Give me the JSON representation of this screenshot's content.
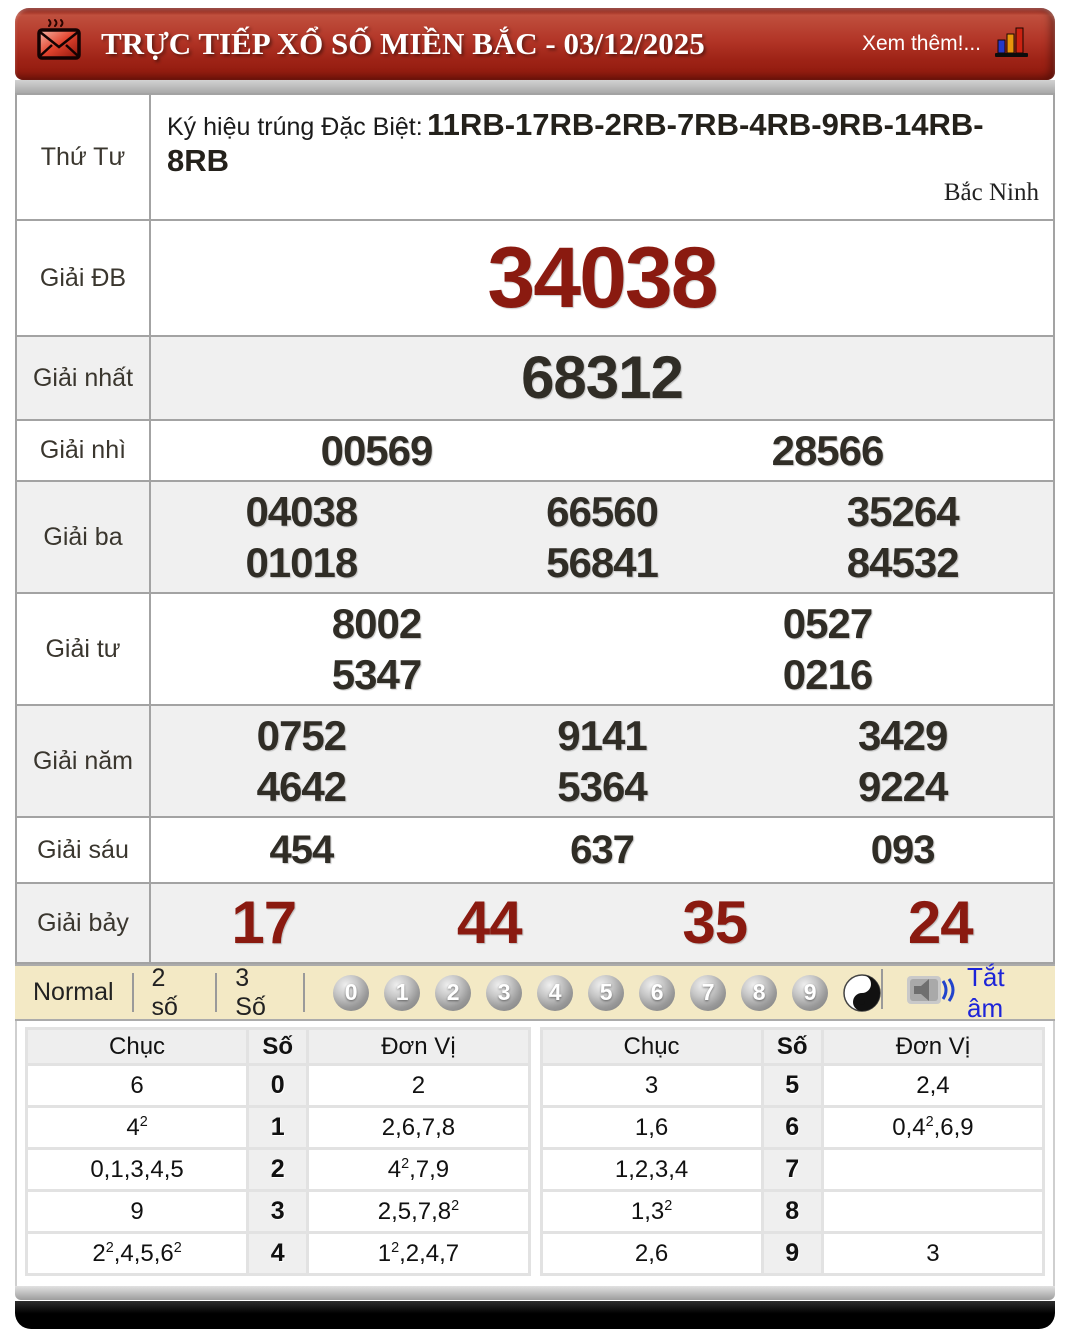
{
  "header": {
    "title": "TRỰC TIẾP XỔ SỐ MIỀN BẮC - 03/12/2025",
    "more_label": "Xem thêm!..."
  },
  "results": {
    "day_label": "Thứ Tư",
    "special_sign_label": "Ký hiệu trúng Đặc Biệt:",
    "special_sign_value": "11RB-17RB-2RB-7RB-4RB-9RB-14RB-8RB",
    "province": "Bắc Ninh",
    "prizes": [
      {
        "label": "Giải ĐB",
        "style": "db",
        "rows": [
          [
            "34038"
          ]
        ]
      },
      {
        "label": "Giải nhất",
        "style": "first",
        "rows": [
          [
            "68312"
          ]
        ]
      },
      {
        "label": "Giải nhì",
        "style": "mid",
        "rows": [
          [
            "00569",
            "28566"
          ]
        ]
      },
      {
        "label": "Giải ba",
        "style": "mid",
        "rows": [
          [
            "04038",
            "66560",
            "35264"
          ],
          [
            "01018",
            "56841",
            "84532"
          ]
        ]
      },
      {
        "label": "Giải tư",
        "style": "mid",
        "rows": [
          [
            "8002",
            "0527"
          ],
          [
            "5347",
            "0216"
          ]
        ]
      },
      {
        "label": "Giải năm",
        "style": "mid",
        "rows": [
          [
            "0752",
            "9141",
            "3429"
          ],
          [
            "4642",
            "5364",
            "9224"
          ]
        ]
      },
      {
        "label": "Giải sáu",
        "style": "six",
        "rows": [
          [
            "454",
            "637",
            "093"
          ]
        ]
      },
      {
        "label": "Giải bảy",
        "style": "seven",
        "rows": [
          [
            "17",
            "44",
            "35",
            "24"
          ]
        ]
      }
    ]
  },
  "toolbar": {
    "modes": [
      "Normal",
      "2 số",
      "3 Số"
    ],
    "balls": [
      "0",
      "1",
      "2",
      "3",
      "4",
      "5",
      "6",
      "7",
      "8",
      "9"
    ],
    "mute_label": "Tắt âm"
  },
  "digit_tables": [
    {
      "headers": [
        "Chục",
        "Số",
        "Đơn Vị"
      ],
      "rows": [
        [
          "6",
          "0",
          "2"
        ],
        [
          "4²",
          "1",
          "2,6,7,8"
        ],
        [
          "0,1,3,4,5",
          "2",
          "4²,7,9"
        ],
        [
          "9",
          "3",
          "2,5,7,8²"
        ],
        [
          "2²,4,5,6²",
          "4",
          "1²,2,4,7"
        ]
      ]
    },
    {
      "headers": [
        "Chục",
        "Số",
        "Đơn Vị"
      ],
      "rows": [
        [
          "3",
          "5",
          "2,4"
        ],
        [
          "1,6",
          "6",
          "0,4²,6,9"
        ],
        [
          "1,2,3,4",
          "7",
          ""
        ],
        [
          "1,3²",
          "8",
          ""
        ],
        [
          "2,6",
          "9",
          "3"
        ]
      ]
    }
  ],
  "colors": {
    "header_red": "#a5281b",
    "number_red": "#8a1a10",
    "number_dark": "#302d26",
    "toolbar_bg": "#f3e9c5",
    "link_blue": "#1d24d8"
  }
}
